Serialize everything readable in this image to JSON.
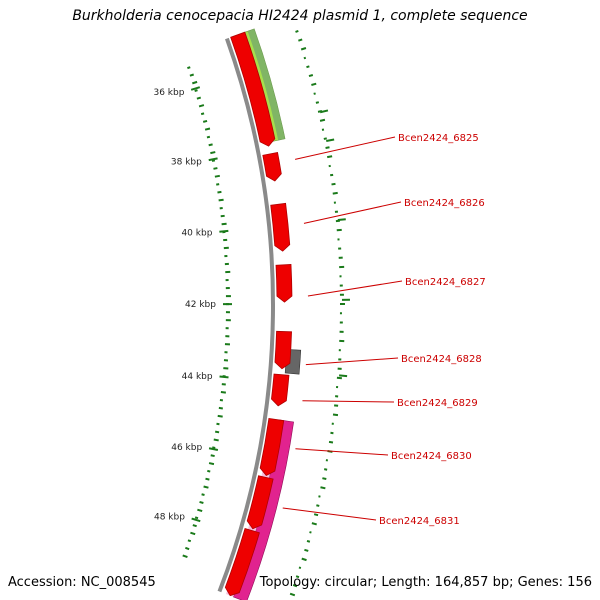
{
  "title": "Burkholderia cenocepacia HI2424 plasmid 1, complete sequence",
  "footer": {
    "accession": "Accession: NC_008545",
    "summary": "Topology: circular; Length: 164,857 bp; Genes: 156"
  },
  "scale_unit": "kbp",
  "ticks": [
    {
      "kbp": 36,
      "label": "36 kbp"
    },
    {
      "kbp": 38,
      "label": "38 kbp"
    },
    {
      "kbp": 40,
      "label": "40 kbp"
    },
    {
      "kbp": 42,
      "label": "42 kbp"
    },
    {
      "kbp": 44,
      "label": "44 kbp"
    },
    {
      "kbp": 46,
      "label": "46 kbp"
    },
    {
      "kbp": 48,
      "label": "48 kbp"
    }
  ],
  "visible_range_kbp": [
    35.3,
    49.3
  ],
  "gene_labels": [
    "Bcen2424_6825",
    "Bcen2424_6826",
    "Bcen2424_6827",
    "Bcen2424_6828",
    "Bcen2424_6829",
    "Bcen2424_6830",
    "Bcen2424_6831"
  ],
  "colors": {
    "backbone": "#8a8a8a",
    "gene": "#ee0000",
    "gene_dark": "#b00000",
    "gc_skew": "#1a7a1a",
    "label": "#cc0000",
    "cog_green": "#9edc3a",
    "cog_gray": "#666666",
    "cog_magenta": "#e0188a"
  }
}
